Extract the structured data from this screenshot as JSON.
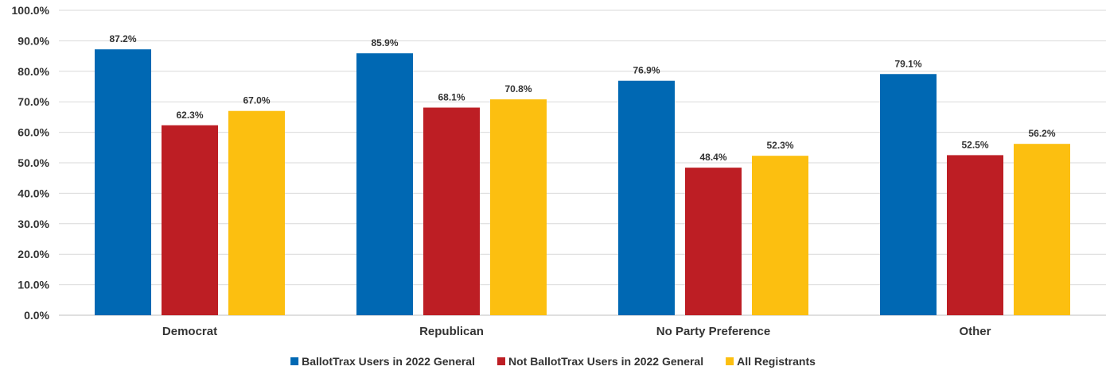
{
  "chart_data": {
    "type": "bar",
    "categories": [
      "Democrat",
      "Republican",
      "No Party Preference",
      "Other"
    ],
    "series": [
      {
        "name": "BallotTrax Users in 2022 General",
        "color": "#0068b3",
        "values": [
          87.2,
          85.9,
          76.9,
          79.1
        ]
      },
      {
        "name": "Not BallotTrax Users in 2022 General",
        "color": "#bd1e24",
        "values": [
          62.3,
          68.1,
          48.4,
          52.5
        ]
      },
      {
        "name": "All Registrants",
        "color": "#fcbf10",
        "values": [
          67.0,
          70.8,
          52.3,
          56.2
        ]
      }
    ],
    "ylim": [
      0,
      100
    ],
    "ytick_step": 10,
    "y_tick_labels": [
      "0.0%",
      "10.0%",
      "20.0%",
      "30.0%",
      "40.0%",
      "50.0%",
      "60.0%",
      "70.0%",
      "80.0%",
      "90.0%",
      "100.0%"
    ],
    "data_labels": [
      [
        "87.2%",
        "85.9%",
        "76.9%",
        "79.1%"
      ],
      [
        "62.3%",
        "68.1%",
        "48.4%",
        "52.5%"
      ],
      [
        "67.0%",
        "70.8%",
        "52.3%",
        "56.2%"
      ]
    ],
    "grid": true,
    "legend": "bottom-center",
    "title": "",
    "xlabel": "",
    "ylabel": ""
  }
}
